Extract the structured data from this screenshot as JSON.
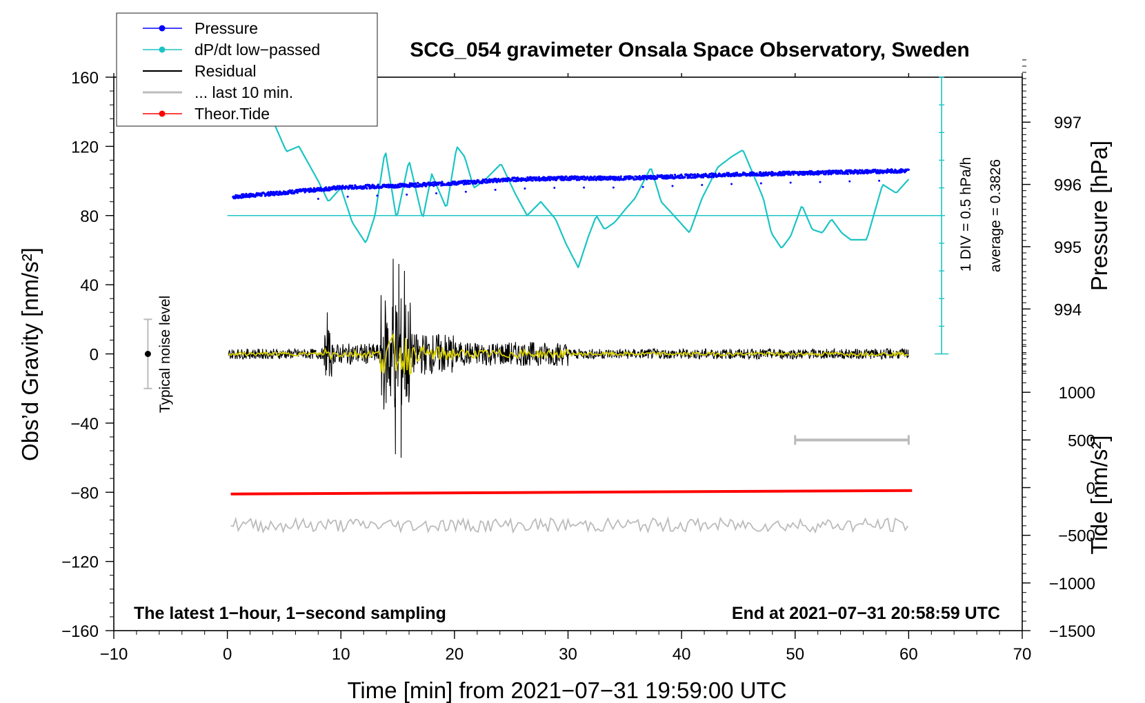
{
  "chart_data": {
    "type": "line",
    "title": "SCG_054 gravimeter Onsala Space Observatory, Sweden",
    "xlabel": "Time [min] from 2021−07−31 19:59:00 UTC",
    "ylabel_left": "Obs’d Gravity [nm/s²]",
    "ylabel_right_pressure": "Pressure [hPa]",
    "ylabel_right_tide": "Tide [nm/s²]",
    "xlim": [
      -10,
      70
    ],
    "ylim": [
      -160,
      160
    ],
    "x_ticks": [
      "−10",
      "0",
      "10",
      "20",
      "30",
      "40",
      "50",
      "60",
      "70"
    ],
    "y_ticks": [
      "160",
      "120",
      "80",
      "40",
      "0",
      "−40",
      "−80",
      "−120",
      "−160"
    ],
    "pressure_axis": {
      "range_hpa": [
        993.0,
        998.0
      ],
      "ticks": [
        "997",
        "996",
        "995",
        "994"
      ]
    },
    "tide_axis": {
      "range": [
        -1500,
        1500
      ],
      "ticks": [
        "1000",
        "500",
        "0",
        "−500",
        "−1000",
        "−1500"
      ]
    },
    "legend": {
      "placement": "top-left",
      "entries": [
        {
          "label": "Pressure",
          "color": "#0000ff"
        },
        {
          "label": "dP/dt low−passed",
          "color": "#1bc4c4"
        },
        {
          "label": "Residual",
          "color": "#000000"
        },
        {
          "label": "... last 10 min.",
          "color": "#bbbbbb"
        },
        {
          "label": "Theor.Tide",
          "color": "#ff0000"
        }
      ]
    },
    "annotations": {
      "noise_label": "Typical noise level",
      "noise_level": [
        -20,
        20
      ],
      "div_label": "1 DIV = 0.5 hPa/h",
      "average_label": "average = 0.3826",
      "bottom_left": "The latest 1−hour, 1−second sampling",
      "bottom_right": "End at 2021−07−31 20:58:59 UTC",
      "last10_span_min": [
        50,
        60
      ]
    },
    "series": [
      {
        "name": "Pressure",
        "color": "#0000ff",
        "units": "hPa",
        "x": [
          0.5,
          5,
          10,
          15,
          20,
          25,
          30,
          35,
          40,
          45,
          50,
          55,
          60
        ],
        "values": [
          995.8,
          995.87,
          995.95,
          995.98,
          996.02,
          996.08,
          996.1,
          996.1,
          996.13,
          996.16,
          996.18,
          996.2,
          996.22
        ]
      },
      {
        "name": "dP/dt low−passed",
        "color": "#1bc4c4",
        "units": "nm/s² plot units",
        "x": [
          4.2,
          5.2,
          6.3,
          8.0,
          8.9,
          10.0,
          11.0,
          12.2,
          13.0,
          13.9,
          14.9,
          16.0,
          17.2,
          18.0,
          19.3,
          20.2,
          20.9,
          21.7,
          22.6,
          24.1,
          25.4,
          26.4,
          27.6,
          28.9,
          29.8,
          30.9,
          31.8,
          32.5,
          33.2,
          34.1,
          35.1,
          35.9,
          37.3,
          38.2,
          39.6,
          40.7,
          41.8,
          43.2,
          44.4,
          45.4,
          46.3,
          47.2,
          47.9,
          48.8,
          49.6,
          50.6,
          51.5,
          52.4,
          53.2,
          54.1,
          54.9,
          56.3,
          57.7,
          58.9,
          60.0
        ],
        "values": [
          132,
          117,
          120,
          100,
          88,
          96,
          76,
          64,
          80,
          118,
          78,
          112,
          78,
          104,
          84,
          120,
          114,
          96,
          100,
          110,
          92,
          80,
          88,
          78,
          64,
          50,
          68,
          80,
          72,
          76,
          84,
          90,
          108,
          88,
          78,
          70,
          90,
          108,
          114,
          118,
          104,
          90,
          70,
          61,
          68,
          86,
          72,
          70,
          78,
          70,
          66,
          66,
          98,
          93,
          101
        ]
      },
      {
        "name": "Residual",
        "color": "#000000",
        "units": "nm/s²",
        "noise_level": 3,
        "x": [
          8.8,
          14.6,
          14.8,
          15.1,
          15.3,
          15.6
        ],
        "values": [
          24,
          55,
          -58,
          52,
          -60,
          48
        ]
      },
      {
        "name": "... last 10 min.",
        "color": "#bbbbbb",
        "units": "nm/s²",
        "baseline": -99,
        "x": [
          0.3,
          60.0
        ],
        "values": [
          -99,
          -99
        ]
      },
      {
        "name": "Theor.Tide",
        "color": "#ff0000",
        "units": "nm/s²",
        "x": [
          0.3,
          60.3
        ],
        "values": [
          -81,
          -79
        ]
      }
    ]
  }
}
